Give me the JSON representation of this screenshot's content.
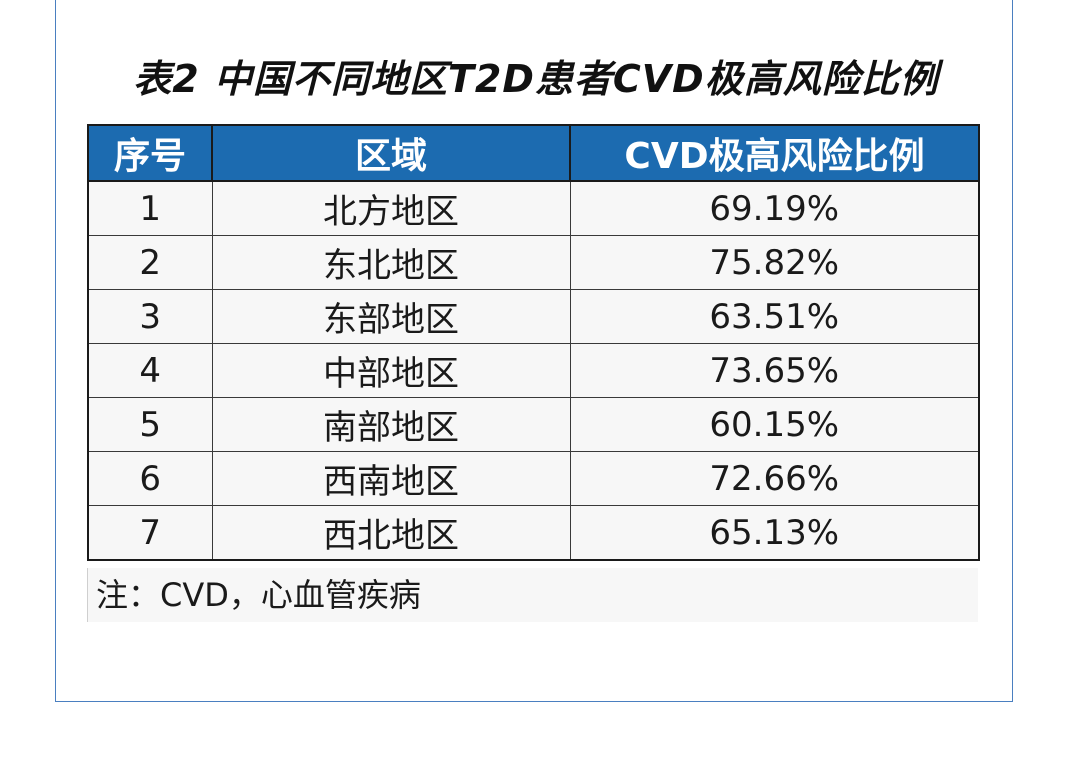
{
  "title": "表2 中国不同地区T2D患者CVD极高风险比例",
  "table": {
    "headers": [
      "序号",
      "区域",
      "CVD极高风险比例"
    ],
    "rows": [
      {
        "index": "1",
        "region": "北方地区",
        "ratio": "69.19%"
      },
      {
        "index": "2",
        "region": "东北地区",
        "ratio": "75.82%"
      },
      {
        "index": "3",
        "region": "东部地区",
        "ratio": "63.51%"
      },
      {
        "index": "4",
        "region": "中部地区",
        "ratio": "73.65%"
      },
      {
        "index": "5",
        "region": "南部地区",
        "ratio": "60.15%"
      },
      {
        "index": "6",
        "region": "西南地区",
        "ratio": "72.66%"
      },
      {
        "index": "7",
        "region": "西北地区",
        "ratio": "65.13%"
      }
    ]
  },
  "note": "注：CVD，心血管疾病",
  "colors": {
    "header_bg": "#1c6bb0",
    "header_text": "#ffffff",
    "frame_border": "#4a7fc0"
  }
}
